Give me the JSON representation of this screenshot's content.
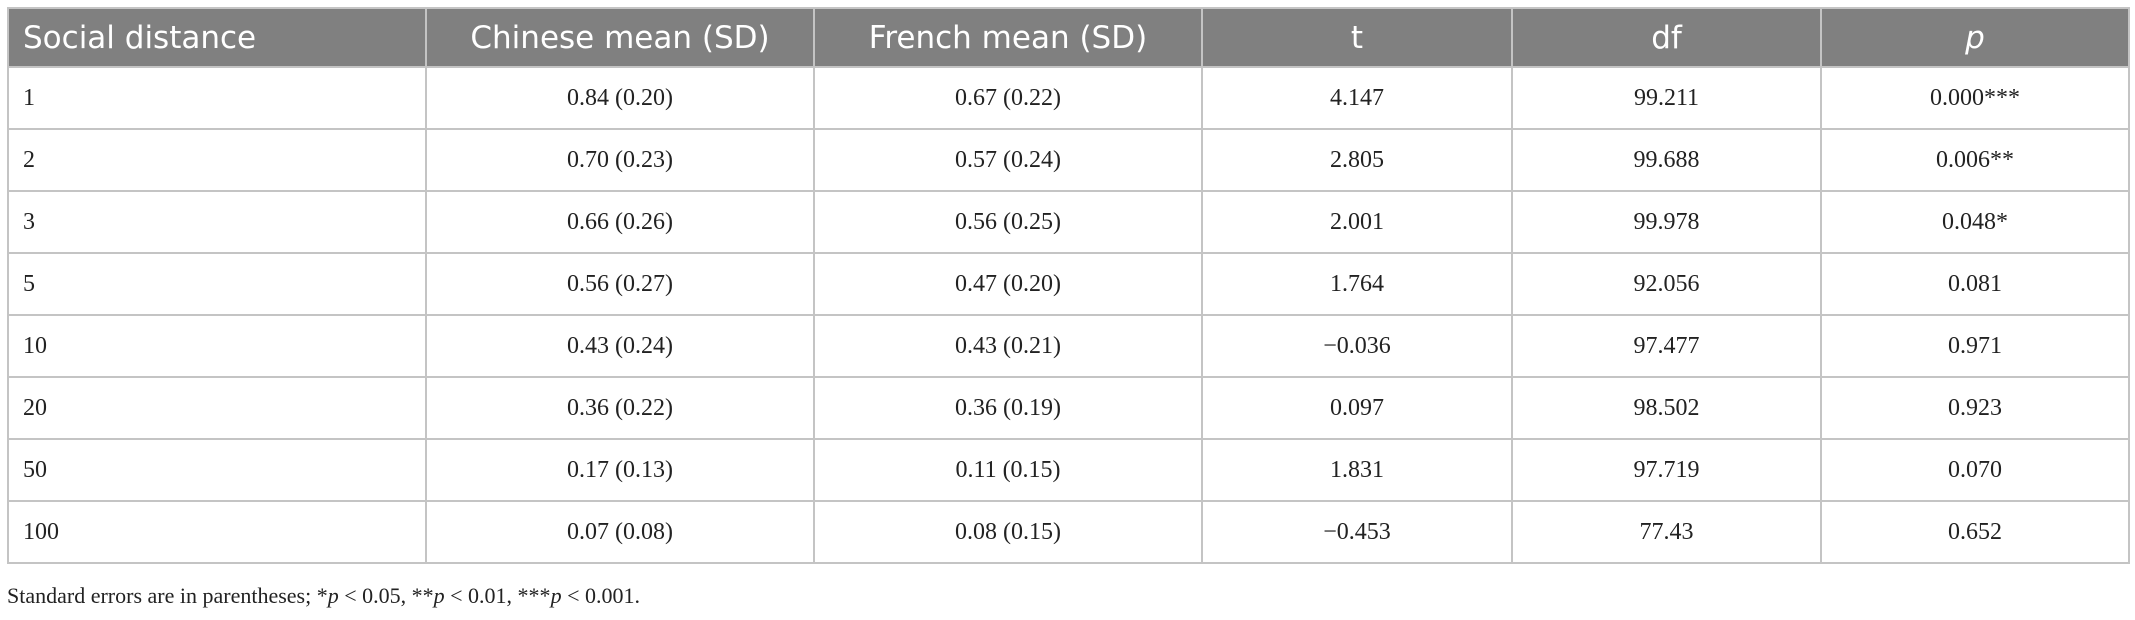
{
  "table": {
    "header": [
      "Social distance",
      "Chinese mean (SD)",
      "French mean (SD)",
      "t",
      "df",
      "p"
    ],
    "rows": [
      [
        "1",
        "0.84 (0.20)",
        "0.67 (0.22)",
        "4.147",
        "99.211",
        "0.000***"
      ],
      [
        "2",
        "0.70 (0.23)",
        "0.57 (0.24)",
        "2.805",
        "99.688",
        "0.006**"
      ],
      [
        "3",
        "0.66 (0.26)",
        "0.56 (0.25)",
        "2.001",
        "99.978",
        "0.048*"
      ],
      [
        "5",
        "0.56 (0.27)",
        "0.47 (0.20)",
        "1.764",
        "92.056",
        "0.081"
      ],
      [
        "10",
        "0.43 (0.24)",
        "0.43 (0.21)",
        "−0.036",
        "97.477",
        "0.971"
      ],
      [
        "20",
        "0.36 (0.22)",
        "0.36 (0.19)",
        "0.097",
        "98.502",
        "0.923"
      ],
      [
        "50",
        "0.17 (0.13)",
        "0.11 (0.15)",
        "1.831",
        "97.719",
        "0.070"
      ],
      [
        "100",
        "0.07 (0.08)",
        "0.08 (0.15)",
        "−0.453",
        "77.43",
        "0.652"
      ]
    ]
  },
  "footnote": [
    "Standard errors are in parentheses; *",
    "p",
    " < 0.05, **",
    "p",
    " < 0.01, ***",
    "p",
    " < 0.001."
  ]
}
